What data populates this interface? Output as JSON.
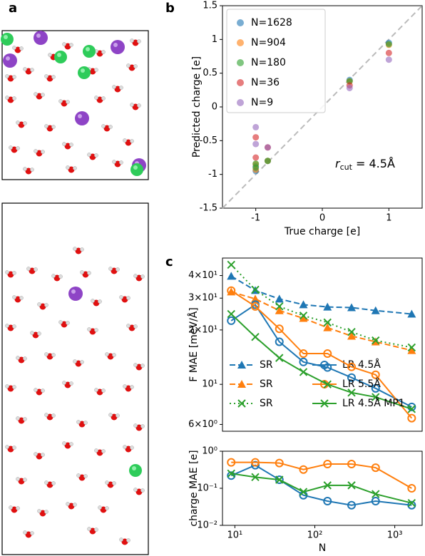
{
  "panels": [
    "a",
    "b",
    "c"
  ],
  "chart_data": [
    {
      "type": "scatter",
      "xlabel": "True charge [e]",
      "ylabel": "Predicted charge [e]",
      "xlim": [
        -1.5,
        1.5
      ],
      "ylim": [
        -1.5,
        1.5
      ],
      "xticks": [
        -1,
        0,
        1
      ],
      "yticks": [
        -1.5,
        -1.0,
        -0.5,
        0.0,
        0.5,
        1.0,
        1.5
      ],
      "diagonal": true,
      "annotation": {
        "symbol": "r",
        "subscript": "cut",
        "text": " = 4.5Å"
      },
      "series": [
        {
          "name": "N=1628",
          "color": "#1f77b4",
          "x": [
            -1,
            -1,
            -0.82,
            0.41,
            1
          ],
          "values": [
            -0.95,
            -0.88,
            -0.8,
            0.4,
            0.95
          ]
        },
        {
          "name": "N=904",
          "color": "#ff7f0e",
          "x": [
            -1,
            -1,
            -0.82,
            0.41,
            1
          ],
          "values": [
            -0.93,
            -0.85,
            -0.8,
            0.38,
            0.92
          ]
        },
        {
          "name": "N=180",
          "color": "#2ca02c",
          "x": [
            -1,
            -1,
            -0.82,
            0.41,
            1
          ],
          "values": [
            -0.9,
            -0.84,
            -0.8,
            0.38,
            0.93
          ]
        },
        {
          "name": "N=36",
          "color": "#d62728",
          "x": [
            -1,
            -1,
            -0.82,
            0.41,
            1
          ],
          "values": [
            -0.75,
            -0.45,
            -0.6,
            0.32,
            0.8
          ]
        },
        {
          "name": "N=9",
          "color": "#9467bd",
          "x": [
            -1,
            -1,
            -0.82,
            0.41,
            1
          ],
          "values": [
            -0.55,
            -0.3,
            -0.6,
            0.28,
            0.7
          ]
        }
      ]
    },
    {
      "type": "line",
      "ylabel": "F MAE [meV/Å]",
      "log_x": true,
      "log_y": true,
      "xlim": [
        7,
        2200
      ],
      "ylim": [
        5.5,
        50
      ],
      "yticks": [
        {
          "value": 6,
          "label": "6×10⁰"
        },
        {
          "value": 10,
          "label": "10¹"
        },
        {
          "value": 20,
          "label": "2×10¹"
        },
        {
          "value": 30,
          "label": "3×10¹"
        },
        {
          "value": 40,
          "label": "4×10¹"
        }
      ],
      "x": [
        9,
        18,
        36,
        72,
        144,
        288,
        576,
        1628
      ],
      "series": [
        {
          "name": "SR",
          "color": "#1f77b4",
          "dash": true,
          "marker": "triangle",
          "values": [
            39.7,
            33.1,
            29.7,
            27.6,
            26.8,
            26.6,
            25.6,
            24.5
          ]
        },
        {
          "name": "SR",
          "color": "#ff7f0e",
          "dash": true,
          "marker": "triangle",
          "values": [
            32.5,
            29.7,
            25.6,
            23.2,
            20.6,
            18.5,
            17.2,
            15.4
          ]
        },
        {
          "name": "SR",
          "color": "#2ca02c",
          "dash": true,
          "marker": "x",
          "values": [
            45.9,
            33.4,
            27,
            24,
            22,
            19.5,
            17.5,
            16
          ]
        },
        {
          "name": "LR  4.5Å",
          "color": "#1f77b4",
          "dash": false,
          "marker": "circle",
          "values": [
            22.5,
            27.6,
            17.2,
            13.3,
            12.4,
            10.9,
            9.5,
            7.5
          ]
        },
        {
          "name": "LR  5.5Å",
          "color": "#ff7f0e",
          "dash": false,
          "marker": "circle",
          "values": [
            33,
            27,
            20.3,
            14.8,
            14.8,
            12.5,
            11.3,
            6.5
          ]
        },
        {
          "name": "LR  4.5Å MP1",
          "color": "#2ca02c",
          "dash": false,
          "marker": "x",
          "values": [
            24.5,
            18.3,
            14,
            11.7,
            10,
            9,
            8.5,
            7.3
          ]
        }
      ]
    },
    {
      "type": "line",
      "xlabel": "N",
      "ylabel": "charge MAE [e]",
      "log_x": true,
      "log_y": true,
      "xlim": [
        7,
        2200
      ],
      "ylim": [
        0.01,
        1
      ],
      "xticks": [
        {
          "value": 10,
          "label": "10¹"
        },
        {
          "value": 100,
          "label": "10²"
        },
        {
          "value": 1000,
          "label": "10³"
        }
      ],
      "yticks": [
        {
          "value": 0.01,
          "label": "10⁻²"
        },
        {
          "value": 0.1,
          "label": "10⁻¹"
        },
        {
          "value": 1,
          "label": "10⁰"
        }
      ],
      "x": [
        9,
        18,
        36,
        72,
        144,
        288,
        576,
        1628
      ],
      "series": [
        {
          "color": "#1f77b4",
          "marker": "circle",
          "values": [
            0.22,
            0.42,
            0.17,
            0.065,
            0.045,
            0.035,
            0.045,
            0.035
          ]
        },
        {
          "color": "#ff7f0e",
          "marker": "circle",
          "values": [
            0.5,
            0.5,
            0.48,
            0.32,
            0.45,
            0.45,
            0.36,
            0.1
          ]
        },
        {
          "color": "#2ca02c",
          "marker": "x",
          "values": [
            0.25,
            0.2,
            0.17,
            0.08,
            0.12,
            0.12,
            0.07,
            0.04
          ]
        }
      ]
    }
  ]
}
